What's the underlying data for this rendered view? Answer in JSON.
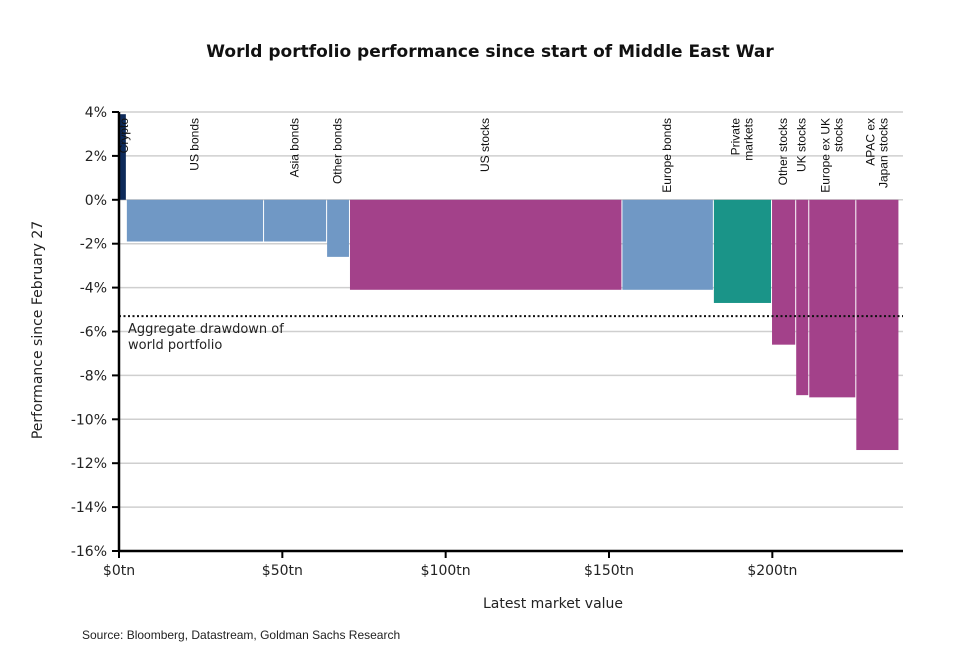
{
  "chart_data": {
    "type": "bar",
    "subtype": "variable-width (marimekko-style) bar",
    "title": "World portfolio performance since start of Middle East War",
    "xlabel": "Latest market value",
    "ylabel": "Performance since February 27",
    "xlim": [
      0,
      240
    ],
    "ylim": [
      -16,
      4
    ],
    "x_ticks": [
      0,
      50,
      100,
      150,
      200
    ],
    "x_tick_labels": [
      "$0tn",
      "$50tn",
      "$100tn",
      "$150tn",
      "$200tn"
    ],
    "y_ticks": [
      4,
      2,
      0,
      -2,
      -4,
      -6,
      -8,
      -10,
      -12,
      -14,
      -16
    ],
    "y_tick_labels": [
      "4%",
      "2%",
      "0%",
      "-2%",
      "-4%",
      "-6%",
      "-8%",
      "-10%",
      "-12%",
      "-14%",
      "-16%"
    ],
    "grid": "horizontal",
    "series": [
      {
        "name": "Crypto",
        "label_lines": [
          "Crypto"
        ],
        "market_value_tn": 2.1,
        "performance_pct": 3.9,
        "color": "#0D2A5A"
      },
      {
        "name": "US bonds",
        "label_lines": [
          "US bonds"
        ],
        "market_value_tn": 42,
        "performance_pct": -1.9,
        "color": "#7098C5"
      },
      {
        "name": "Asia bonds",
        "label_lines": [
          "Asia bonds"
        ],
        "market_value_tn": 19.3,
        "performance_pct": -1.9,
        "color": "#7098C5"
      },
      {
        "name": "Other bonds",
        "label_lines": [
          "Other bonds"
        ],
        "market_value_tn": 7,
        "performance_pct": -2.6,
        "color": "#7098C5"
      },
      {
        "name": "US stocks",
        "label_lines": [
          "US stocks"
        ],
        "market_value_tn": 83.4,
        "performance_pct": -4.1,
        "color": "#A3418A"
      },
      {
        "name": "Europe bonds",
        "label_lines": [
          "Europe bonds"
        ],
        "market_value_tn": 28,
        "performance_pct": -4.1,
        "color": "#7098C5"
      },
      {
        "name": "Private markets",
        "label_lines": [
          "Private",
          "markets"
        ],
        "market_value_tn": 17.8,
        "performance_pct": -4.7,
        "color": "#1A9488"
      },
      {
        "name": "Other stocks",
        "label_lines": [
          "Other stocks"
        ],
        "market_value_tn": 7.4,
        "performance_pct": -6.6,
        "color": "#A3418A"
      },
      {
        "name": "UK stocks",
        "label_lines": [
          "UK stocks"
        ],
        "market_value_tn": 4,
        "performance_pct": -8.9,
        "color": "#A3418A"
      },
      {
        "name": "Europe ex UK stocks",
        "label_lines": [
          "Europe ex UK",
          "stocks"
        ],
        "market_value_tn": 14.4,
        "performance_pct": -9.0,
        "color": "#A3418A"
      },
      {
        "name": "APAC ex Japan stocks",
        "label_lines": [
          "APAC ex",
          "Japan stocks"
        ],
        "market_value_tn": 13.2,
        "performance_pct": -11.4,
        "color": "#A3418A"
      }
    ],
    "reference_line": {
      "value_pct": -5.3,
      "style": "dotted",
      "label_lines": [
        "Aggregate drawdown of",
        "world portfolio"
      ]
    },
    "source": "Source: Bloomberg, Datastream, Goldman Sachs Research"
  }
}
